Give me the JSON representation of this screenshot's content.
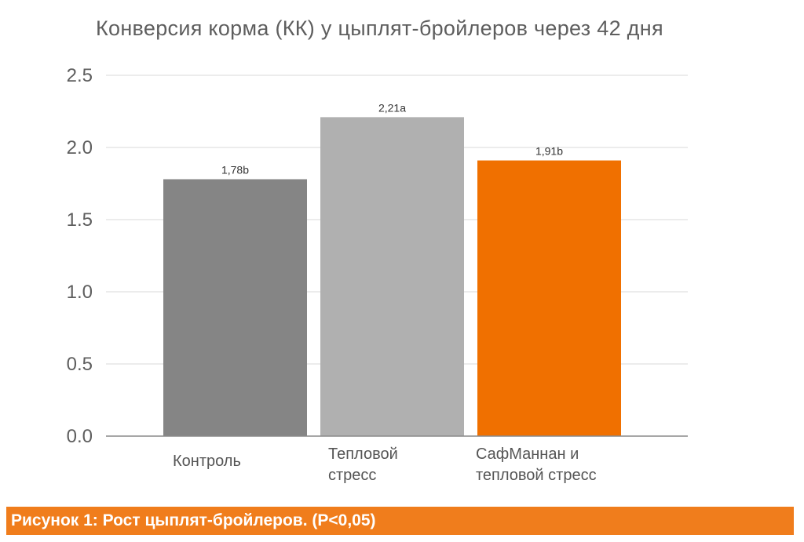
{
  "chart_data": {
    "type": "bar",
    "title": "Конверсия корма (КК) у цыплят-бройлеров через 42 дня",
    "xlabel": "",
    "ylabel": "",
    "ylim": [
      0,
      2.5
    ],
    "yticks": [
      "0.0",
      "0.5",
      "1.0",
      "1.5",
      "2.0",
      "2.5"
    ],
    "grid": true,
    "categories": [
      [
        "Контроль"
      ],
      [
        "Тепловой",
        "стресс"
      ],
      [
        "СафМаннан и",
        "тепловой стресс"
      ]
    ],
    "values": [
      1.78,
      2.21,
      1.91
    ],
    "data_labels": [
      "1,78b",
      "2,21a",
      "1,91b"
    ],
    "colors": [
      "#858585",
      "#b0b0b0",
      "#f07000"
    ]
  },
  "caption": "Рисунок 1: Рост цыплят-бройлеров. (P<0,05)"
}
